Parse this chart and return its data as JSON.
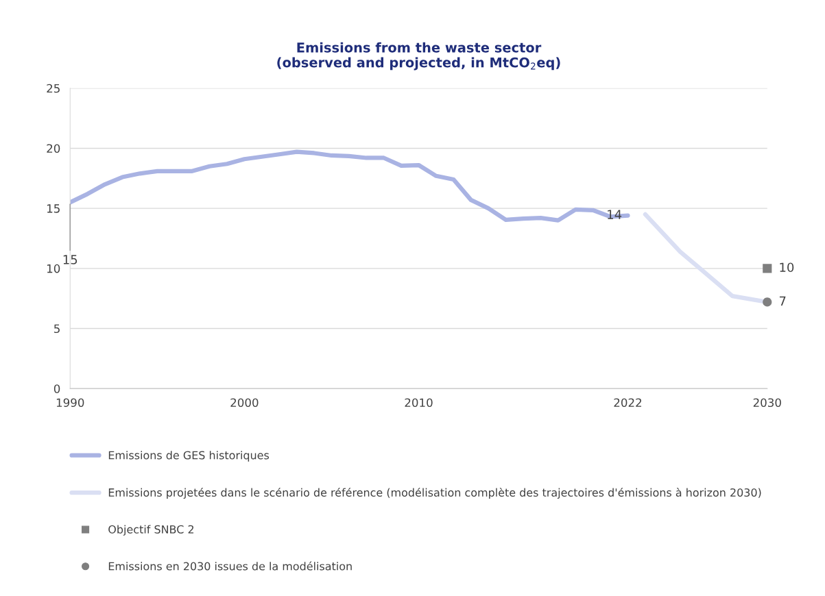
{
  "chart_data": {
    "type": "line",
    "title": "Emissions from the waste sector\n(observed and projected, in MtCO$_{2}$eq)",
    "xlim": [
      1990,
      2030
    ],
    "xticks": [
      1990,
      2000,
      2010,
      2022,
      2030
    ],
    "ylim": [
      0,
      25
    ],
    "yticks": [
      0,
      5,
      10,
      15,
      20,
      25
    ],
    "grid": "y",
    "legend": "bottom",
    "series": [
      {
        "name": "Emissions de GES historiques",
        "color": "#a9b3e3",
        "x": [
          1990,
          1991,
          1992,
          1993,
          1994,
          1995,
          1996,
          1997,
          1998,
          1999,
          2000,
          2001,
          2002,
          2003,
          2004,
          2005,
          2006,
          2007,
          2008,
          2009,
          2010,
          2011,
          2012,
          2013,
          2014,
          2015,
          2016,
          2017,
          2018,
          2019,
          2020,
          2021,
          2022
        ],
        "values": [
          15.5,
          16.2,
          17.0,
          17.6,
          17.9,
          18.1,
          18.1,
          18.1,
          18.5,
          18.7,
          19.1,
          19.3,
          19.5,
          19.7,
          19.6,
          19.4,
          19.35,
          19.2,
          19.2,
          18.55,
          18.6,
          17.7,
          17.4,
          15.7,
          15.0,
          14.05,
          14.15,
          14.2,
          14.0,
          14.9,
          14.85,
          14.3,
          14.4
        ],
        "value_labels": [
          "15",
          null,
          null,
          null,
          null,
          null,
          null,
          null,
          null,
          null,
          null,
          null,
          null,
          null,
          null,
          null,
          null,
          null,
          null,
          null,
          null,
          null,
          null,
          null,
          null,
          null,
          null,
          null,
          null,
          null,
          null,
          null,
          "14"
        ]
      },
      {
        "name": "Emissions projetées dans le scénario de référence (modélisation complète des trajectoires d'émissions à horizon 2030)",
        "color": "#dadff3",
        "x": [
          2023,
          2025,
          2028,
          2030
        ],
        "values": [
          14.5,
          11.4,
          7.7,
          7.2
        ]
      },
      {
        "name": "Objectif SNBC 2",
        "type": "scatter",
        "marker": "square",
        "color": "#7f7f7f",
        "x": [
          2030
        ],
        "values": [
          10.0
        ],
        "value_labels": [
          "10"
        ]
      },
      {
        "name": "Emissions en 2030 issues de la modélisation",
        "type": "scatter",
        "marker": "circle",
        "color": "#7f7f7f",
        "x": [
          2030
        ],
        "values": [
          7.2
        ],
        "value_labels": [
          "7"
        ]
      }
    ]
  }
}
